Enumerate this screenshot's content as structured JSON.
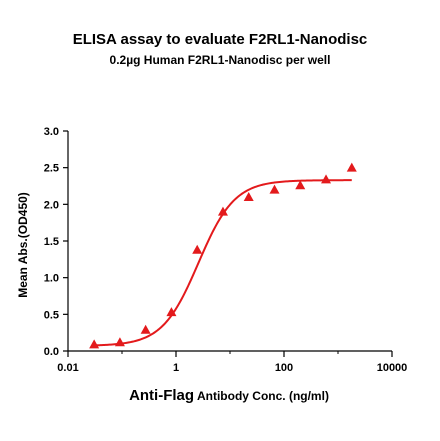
{
  "chart_data": {
    "type": "scatter",
    "title": "ELISA assay to evaluate F2RL1-Nanodisc",
    "subtitle": "0.2µg Human F2RL1-Nanodisc per well",
    "xlabel_bold": "Anti-Flag",
    "xlabel_rest": " Antibody Conc. (ng/ml)",
    "ylabel": "Mean Abs.(OD450)",
    "x_scale": "log",
    "xlim": [
      0.01,
      10000
    ],
    "ylim": [
      0.0,
      3.0
    ],
    "x_ticks": [
      0.01,
      1,
      100,
      10000
    ],
    "x_tick_labels": [
      "0.01",
      "1",
      "100",
      "10000"
    ],
    "y_ticks": [
      0.0,
      0.5,
      1.0,
      1.5,
      2.0,
      2.5,
      3.0
    ],
    "y_tick_labels": [
      "0.0",
      "0.5",
      "1.0",
      "1.5",
      "2.0",
      "2.5",
      "3.0"
    ],
    "grid": false,
    "marker": "triangle",
    "color": "#e31a1c",
    "series": [
      {
        "x": [
          0.0305,
          0.0915,
          0.274,
          0.823,
          2.47,
          7.41,
          22.2,
          66.7,
          200,
          600,
          1800
        ],
        "y": [
          0.09,
          0.12,
          0.29,
          0.53,
          1.38,
          1.9,
          2.1,
          2.2,
          2.26,
          2.34,
          2.5
        ]
      }
    ],
    "fit_curve": {
      "bottom": 0.07,
      "top": 2.33,
      "ec50": 2.6,
      "hill": 1.3
    }
  }
}
